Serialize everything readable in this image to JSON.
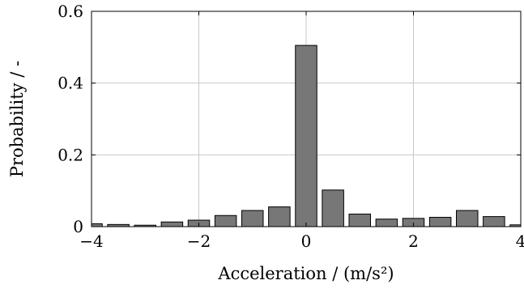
{
  "chart_data": {
    "type": "bar",
    "title": "",
    "xlabel": "Acceleration / (m/s²)",
    "ylabel": "Probability / -",
    "xlim": [
      -4,
      4
    ],
    "ylim": [
      0,
      0.6
    ],
    "xticks": [
      -4,
      -2,
      0,
      2,
      4
    ],
    "xtick_labels": [
      "−4",
      "−2",
      "0",
      "2",
      "4"
    ],
    "yticks": [
      0,
      0.2,
      0.4,
      0.6
    ],
    "ytick_labels": [
      "0",
      "0.2",
      "0.4",
      "0.6"
    ],
    "grid": true,
    "bar_width": 0.4,
    "bar_color": "#777777",
    "bar_edge_color": "#000000",
    "bars": [
      {
        "x": -4.0,
        "value": 0.008
      },
      {
        "x": -3.5,
        "value": 0.006
      },
      {
        "x": -3.0,
        "value": 0.004
      },
      {
        "x": -2.5,
        "value": 0.013
      },
      {
        "x": -2.0,
        "value": 0.018
      },
      {
        "x": -1.5,
        "value": 0.031
      },
      {
        "x": -1.0,
        "value": 0.045
      },
      {
        "x": -0.5,
        "value": 0.055
      },
      {
        "x": 0.0,
        "value": 0.505
      },
      {
        "x": 0.5,
        "value": 0.102
      },
      {
        "x": 1.0,
        "value": 0.035
      },
      {
        "x": 1.5,
        "value": 0.021
      },
      {
        "x": 2.0,
        "value": 0.023
      },
      {
        "x": 2.5,
        "value": 0.026
      },
      {
        "x": 3.0,
        "value": 0.045
      },
      {
        "x": 3.5,
        "value": 0.028
      },
      {
        "x": 4.0,
        "value": 0.005
      }
    ]
  }
}
